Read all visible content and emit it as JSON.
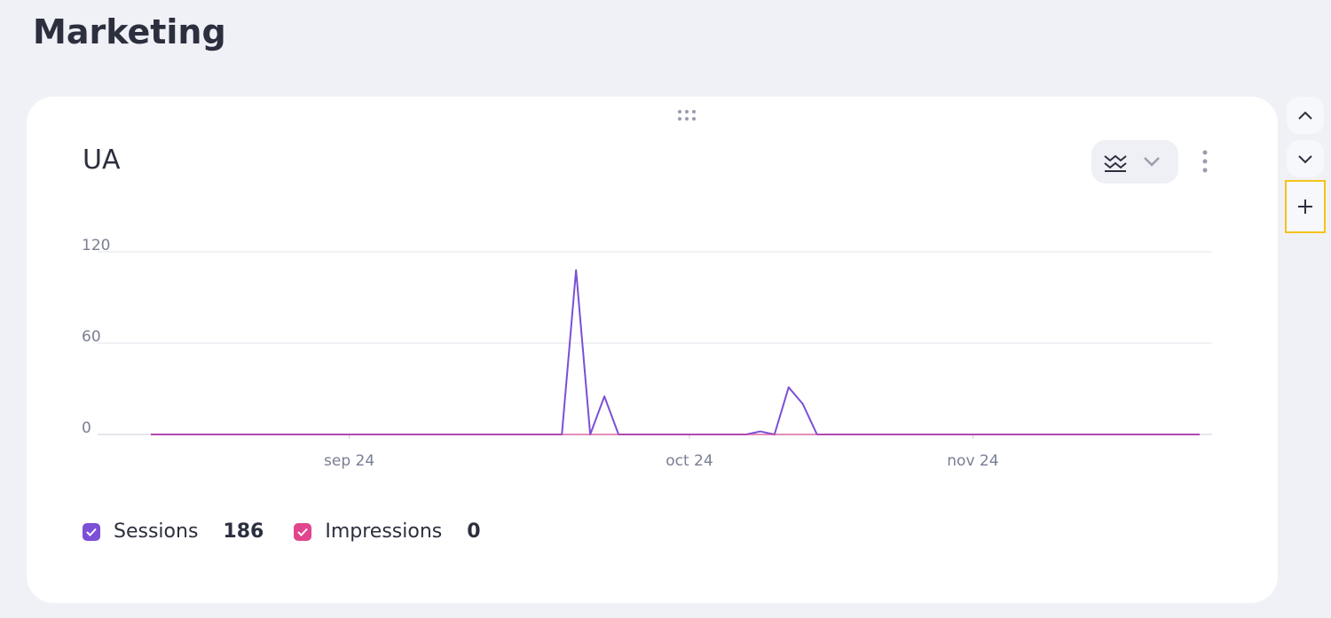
{
  "header": {
    "title": "Marketing"
  },
  "chart_data": {
    "type": "line",
    "title": "UA",
    "categories": [
      null,
      null,
      null,
      null,
      null,
      null,
      null,
      null,
      null,
      null,
      null,
      null,
      null,
      null,
      "sep 24",
      null,
      null,
      null,
      null,
      null,
      null,
      null,
      null,
      null,
      null,
      null,
      null,
      null,
      null,
      null,
      null,
      null,
      null,
      null,
      null,
      null,
      null,
      null,
      "oct 24",
      null,
      null,
      null,
      null,
      null,
      null,
      null,
      null,
      null,
      null,
      null,
      null,
      null,
      null,
      null,
      null,
      null,
      null,
      null,
      "nov 24",
      null,
      null,
      null,
      null,
      null,
      null,
      null,
      null,
      null,
      null,
      null,
      null,
      null,
      null,
      null,
      null
    ],
    "series": [
      {
        "name": "Sessions",
        "color": "#7b4fd6",
        "total": 186,
        "values": [
          0,
          0,
          0,
          0,
          0,
          0,
          0,
          0,
          0,
          0,
          0,
          0,
          0,
          0,
          0,
          0,
          0,
          0,
          0,
          0,
          0,
          0,
          0,
          0,
          0,
          0,
          0,
          0,
          0,
          0,
          108,
          0,
          25,
          0,
          0,
          0,
          0,
          0,
          0,
          0,
          0,
          0,
          0,
          2,
          0,
          31,
          20,
          0,
          0,
          0,
          0,
          0,
          0,
          0,
          0,
          0,
          0,
          0,
          0,
          0,
          0,
          0,
          0,
          0,
          0,
          0,
          0,
          0,
          0,
          0,
          0,
          0,
          0,
          0,
          0
        ]
      },
      {
        "name": "Impressions",
        "color": "#e0458f",
        "total": 0,
        "values": [
          0,
          0,
          0,
          0,
          0,
          0,
          0,
          0,
          0,
          0,
          0,
          0,
          0,
          0,
          0,
          0,
          0,
          0,
          0,
          0,
          0,
          0,
          0,
          0,
          0,
          0,
          0,
          0,
          0,
          0,
          0,
          0,
          0,
          0,
          0,
          0,
          0,
          0,
          0,
          0,
          0,
          0,
          0,
          0,
          0,
          0,
          0,
          0,
          0,
          0,
          0,
          0,
          0,
          0,
          0,
          0,
          0,
          0,
          0,
          0,
          0,
          0,
          0,
          0,
          0,
          0,
          0,
          0,
          0,
          0,
          0,
          0,
          0,
          0,
          0
        ]
      }
    ],
    "ylim": [
      0,
      120
    ],
    "yticks": [
      0,
      60,
      120
    ],
    "grid": true
  }
}
